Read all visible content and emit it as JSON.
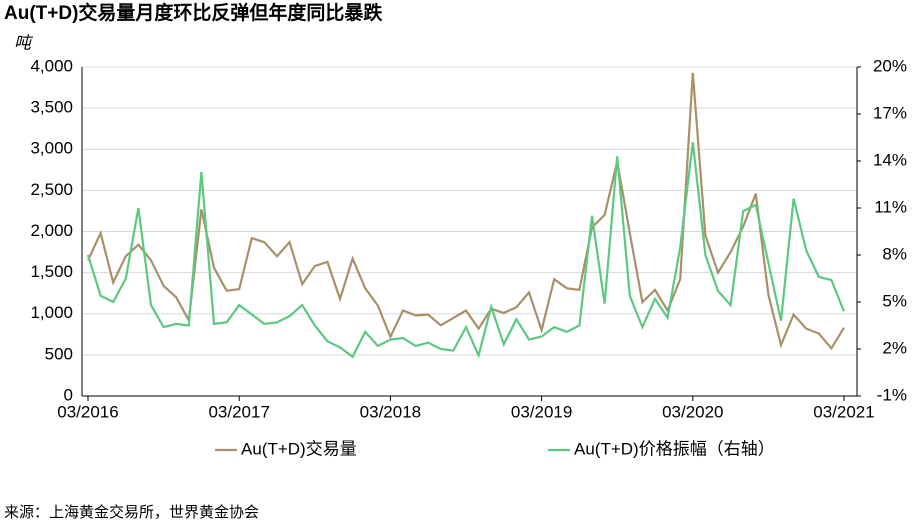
{
  "chart_data": {
    "type": "line",
    "title": "Au(T+D)交易量月度环比反弹但年度同比暴跌",
    "y_axis_label": "吨",
    "source": "来源：上海黄金交易所，世界黄金协会",
    "categories": [
      "03/2016",
      null,
      null,
      null,
      null,
      null,
      null,
      null,
      null,
      null,
      null,
      null,
      "03/2017",
      null,
      null,
      null,
      null,
      null,
      null,
      null,
      null,
      null,
      null,
      null,
      "03/2018",
      null,
      null,
      null,
      null,
      null,
      null,
      null,
      null,
      null,
      null,
      null,
      "03/2019",
      null,
      null,
      null,
      null,
      null,
      null,
      null,
      null,
      null,
      null,
      null,
      "03/2020",
      null,
      null,
      null,
      null,
      null,
      null,
      null,
      null,
      null,
      null,
      null,
      "03/2021"
    ],
    "series": [
      {
        "name": "Au(T+D)交易量",
        "color": "#a89069",
        "values": [
          1650,
          1980,
          1380,
          1700,
          1840,
          1650,
          1340,
          1200,
          920,
          2270,
          1560,
          1280,
          1300,
          1920,
          1870,
          1700,
          1870,
          1360,
          1580,
          1630,
          1180,
          1670,
          1310,
          1100,
          720,
          1040,
          980,
          990,
          860,
          950,
          1040,
          820,
          1060,
          1010,
          1080,
          1260,
          800,
          1420,
          1310,
          1290,
          2050,
          2200,
          2850,
          1980,
          1140,
          1290,
          1040,
          1420,
          3930,
          1950,
          1500,
          1750,
          2060,
          2460,
          1230,
          620,
          990,
          820,
          760,
          580,
          830
        ]
      },
      {
        "name": "Au(T+D)价格振幅（右轴）",
        "color": "#5cc882",
        "axis": "y2",
        "values": [
          8.0,
          5.4,
          5.0,
          6.5,
          11.0,
          4.8,
          3.4,
          3.6,
          3.5,
          13.3,
          3.6,
          3.7,
          4.8,
          4.2,
          3.6,
          3.7,
          4.1,
          4.8,
          3.5,
          2.5,
          2.1,
          1.5,
          3.1,
          2.2,
          2.6,
          2.7,
          2.2,
          2.4,
          2.0,
          1.9,
          3.4,
          1.6,
          4.7,
          2.3,
          3.9,
          2.6,
          2.8,
          3.4,
          3.1,
          3.5,
          10.5,
          4.9,
          14.3,
          5.4,
          3.4,
          5.2,
          4.0,
          8.5,
          15.2,
          8.0,
          5.7,
          4.8,
          10.8,
          11.2,
          7.5,
          3.8,
          11.6,
          8.3,
          6.6,
          6.4,
          4.4
        ]
      }
    ],
    "ylim": [
      0,
      4000
    ],
    "yticks": [
      0,
      500,
      {
        "value": 1000,
        "label": "1,000"
      },
      {
        "value": 1500,
        "label": "1,500"
      },
      {
        "value": 2000,
        "label": "2,000"
      },
      {
        "value": 2500,
        "label": "2,500"
      },
      {
        "value": 3000,
        "label": "3,000"
      },
      {
        "value": 3500,
        "label": "3,500"
      },
      {
        "value": 4000,
        "label": "4,000"
      }
    ],
    "y2lim": [
      -1,
      20
    ],
    "y2ticks": [
      {
        "value": -1,
        "label": "-1%"
      },
      {
        "value": 2,
        "label": "2%"
      },
      {
        "value": 5,
        "label": "5%"
      },
      {
        "value": 8,
        "label": "8%"
      },
      {
        "value": 11,
        "label": "11%"
      },
      {
        "value": 14,
        "label": "14%"
      },
      {
        "value": 17,
        "label": "17%"
      },
      {
        "value": 20,
        "label": "20%"
      }
    ],
    "grid": true
  }
}
